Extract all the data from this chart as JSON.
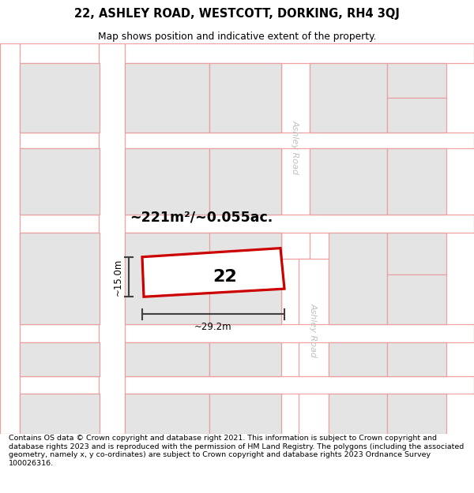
{
  "title": "22, ASHLEY ROAD, WESTCOTT, DORKING, RH4 3QJ",
  "subtitle": "Map shows position and indicative extent of the property.",
  "footer": "Contains OS data © Crown copyright and database right 2021. This information is subject to Crown copyright and database rights 2023 and is reproduced with the permission of HM Land Registry. The polygons (including the associated geometry, namely x, y co-ordinates) are subject to Crown copyright and database rights 2023 Ordnance Survey 100026316.",
  "map_bg": "#f0f0f0",
  "building_fill": "#e4e4e4",
  "building_edge": "#e8a0a0",
  "road_bg": "#ffffff",
  "road_line_color": "#f0a0a0",
  "highlight_fill": "#ffffff",
  "highlight_edge": "#cc0000",
  "area_text": "~221m²/~0.055ac.",
  "number_text": "22",
  "width_label": "~29.2m",
  "height_label": "~15.0m",
  "ashley_road_label": "Ashley Road",
  "meas_color": "#404040"
}
